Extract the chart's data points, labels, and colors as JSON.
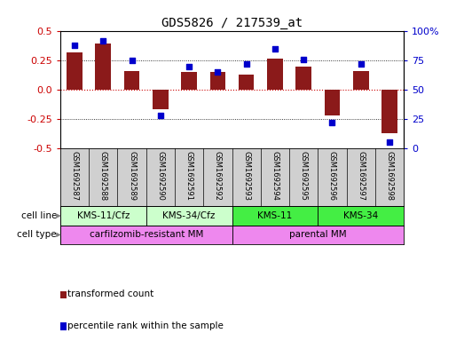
{
  "title": "GDS5826 / 217539_at",
  "samples": [
    "GSM1692587",
    "GSM1692588",
    "GSM1692589",
    "GSM1692590",
    "GSM1692591",
    "GSM1692592",
    "GSM1692593",
    "GSM1692594",
    "GSM1692595",
    "GSM1692596",
    "GSM1692597",
    "GSM1692598"
  ],
  "transformed_count": [
    0.32,
    0.4,
    0.16,
    -0.17,
    0.15,
    0.15,
    0.13,
    0.27,
    0.2,
    -0.22,
    0.16,
    -0.37
  ],
  "percentile_rank": [
    88,
    92,
    75,
    28,
    70,
    65,
    72,
    85,
    76,
    22,
    72,
    5
  ],
  "bar_color": "#8B1A1A",
  "dot_color": "#0000CC",
  "zero_line_color": "#CC0000",
  "ylim_left": [
    -0.5,
    0.5
  ],
  "ylim_right": [
    0,
    100
  ],
  "yticks_left": [
    -0.5,
    -0.25,
    0.0,
    0.25,
    0.5
  ],
  "yticks_right": [
    0,
    25,
    50,
    75,
    100
  ],
  "ytick_labels_right": [
    "0",
    "25",
    "50",
    "75",
    "100%"
  ],
  "cell_line_groups": [
    {
      "label": "KMS-11/Cfz",
      "start": 0,
      "end": 3,
      "color": "#CCFFCC"
    },
    {
      "label": "KMS-34/Cfz",
      "start": 3,
      "end": 6,
      "color": "#CCFFCC"
    },
    {
      "label": "KMS-11",
      "start": 6,
      "end": 9,
      "color": "#44EE44"
    },
    {
      "label": "KMS-34",
      "start": 9,
      "end": 12,
      "color": "#44EE44"
    }
  ],
  "cell_type_groups": [
    {
      "label": "carfilzomib-resistant MM",
      "start": 0,
      "end": 6,
      "color": "#EE88EE"
    },
    {
      "label": "parental MM",
      "start": 6,
      "end": 12,
      "color": "#EE88EE"
    }
  ],
  "cell_line_label": "cell line",
  "cell_type_label": "cell type",
  "legend_entries": [
    {
      "color": "#8B1A1A",
      "label": "transformed count"
    },
    {
      "color": "#0000CC",
      "label": "percentile rank within the sample"
    }
  ],
  "sample_bg_color": "#D0D0D0",
  "title_fontsize": 10
}
